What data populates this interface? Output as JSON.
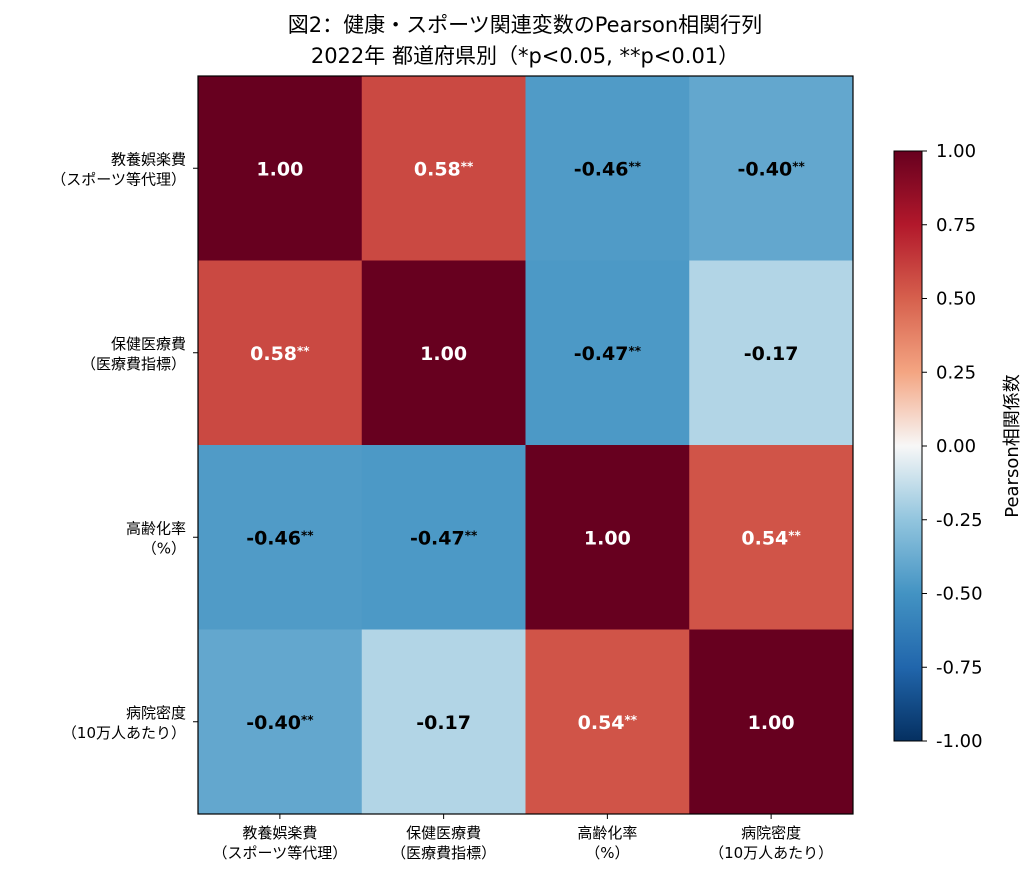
{
  "chart_data": {
    "type": "heatmap",
    "title": "図2：健康・スポーツ関連変数のPearson相関行列",
    "subtitle": "2022年 都道府県別（*p<0.05, **p<0.01）",
    "row_labels": [
      [
        "教養娯楽費",
        "（スポーツ等代理）"
      ],
      [
        "保健医療費",
        "（医療費指標）"
      ],
      [
        "高齢化率",
        "（%）"
      ],
      [
        "病院密度",
        "（10万人あたり）"
      ]
    ],
    "col_labels": [
      [
        "教養娯楽費",
        "（スポーツ等代理）"
      ],
      [
        "保健医療費",
        "（医療費指標）"
      ],
      [
        "高齢化率",
        "（%）"
      ],
      [
        "病院密度",
        "（10万人あたり）"
      ]
    ],
    "values": [
      [
        1.0,
        0.58,
        -0.46,
        -0.4
      ],
      [
        0.58,
        1.0,
        -0.47,
        -0.17
      ],
      [
        -0.46,
        -0.47,
        1.0,
        0.54
      ],
      [
        -0.4,
        -0.17,
        0.54,
        1.0
      ]
    ],
    "cell_text": [
      [
        "1.00",
        "0.58",
        "-0.46",
        "-0.40"
      ],
      [
        "0.58",
        "1.00",
        "-0.47",
        "-0.17"
      ],
      [
        "-0.46",
        "-0.47",
        "1.00",
        "0.54"
      ],
      [
        "-0.40",
        "-0.17",
        "0.54",
        "1.00"
      ]
    ],
    "significance": [
      [
        "",
        "**",
        "**",
        "**"
      ],
      [
        "**",
        "",
        "**",
        ""
      ],
      [
        "**",
        "**",
        "",
        "**"
      ],
      [
        "**",
        "",
        "**",
        ""
      ]
    ],
    "colorbar": {
      "label": "Pearson相関係数",
      "range": [
        -1.0,
        1.0
      ],
      "ticks": [
        "1.00",
        "0.75",
        "0.50",
        "0.25",
        "0.00",
        "-0.25",
        "-0.50",
        "-0.75",
        "-1.00"
      ],
      "tick_values": [
        1.0,
        0.75,
        0.5,
        0.25,
        0.0,
        -0.25,
        -0.5,
        -0.75,
        -1.0
      ],
      "colormap": "RdBu_r"
    }
  }
}
